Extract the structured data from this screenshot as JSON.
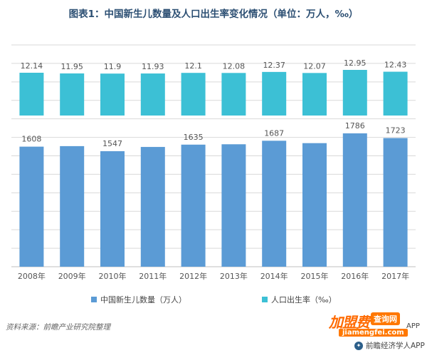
{
  "title": "图表1：中国新生儿数量及人口出生率变化情况（单位：万人，‰）",
  "source_label": "资料来源：前瞻产业研究院整理",
  "brand": {
    "logo_text": "加盟费",
    "tag_text": "查询网",
    "url_text": "jiamengfei.com",
    "app_text": "APP",
    "bottom_text": "前瞻经济学人APP"
  },
  "colors": {
    "births": "#5b9bd5",
    "rate": "#3cc0d5",
    "grid": "#d9d9d9",
    "title": "#2c4f73"
  },
  "chart_data": {
    "type": "bar",
    "categories": [
      "2008年",
      "2009年",
      "2010年",
      "2011年",
      "2012年",
      "2013年",
      "2014年",
      "2015年",
      "2016年",
      "2017年"
    ],
    "series": [
      {
        "name": "中国新生儿数量（万人）",
        "values": [
          1608,
          1615,
          1547,
          1604,
          1635,
          1640,
          1687,
          1655,
          1786,
          1723
        ],
        "data_labels": [
          "1608",
          "",
          "1547",
          "",
          "1635",
          "",
          "1687",
          "",
          "1786",
          "1723"
        ]
      },
      {
        "name": "人口出生率（‰）",
        "values": [
          12.14,
          11.95,
          11.9,
          11.93,
          12.1,
          12.08,
          12.37,
          12.07,
          12.95,
          12.43
        ],
        "data_labels": [
          "12.14",
          "11.95",
          "11.9",
          "11.93",
          "12.1",
          "12.08",
          "12.37",
          "12.07",
          "12.95",
          "12.43"
        ]
      }
    ],
    "grid": true,
    "legend_position": "bottom"
  }
}
